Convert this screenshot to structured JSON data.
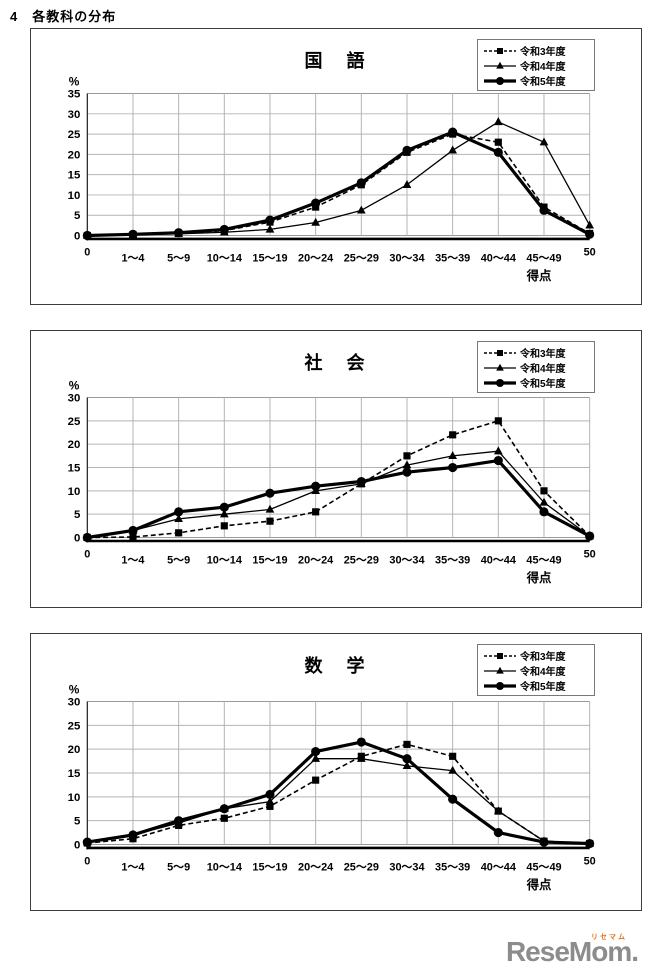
{
  "page": {
    "header": "4　各教科の分布"
  },
  "legend": {
    "items": [
      {
        "label": "令和3年度",
        "marker": "square",
        "line": "dashed",
        "color": "#000000"
      },
      {
        "label": "令和4年度",
        "marker": "triangle",
        "line": "solid-thin",
        "color": "#000000"
      },
      {
        "label": "令和5年度",
        "marker": "circle",
        "line": "solid-thick",
        "color": "#000000"
      }
    ]
  },
  "chart_data": [
    {
      "type": "line",
      "title": "国　語",
      "ylabel": "%",
      "xlabel": "得点",
      "ylim": [
        0,
        35
      ],
      "ytick_step": 5,
      "grid": true,
      "legend_position": "top-right",
      "categories": [
        "0",
        "1〜4",
        "5〜9",
        "10〜14",
        "15〜19",
        "20〜24",
        "25〜29",
        "30〜34",
        "35〜39",
        "40〜44",
        "45〜49",
        "50"
      ],
      "series": [
        {
          "name": "令和3年度",
          "marker": "square",
          "line": "dashed",
          "values": [
            0,
            0.2,
            0.5,
            1.2,
            3.3,
            7,
            12.5,
            20.5,
            25,
            23,
            7,
            0.5
          ]
        },
        {
          "name": "令和4年度",
          "marker": "triangle",
          "line": "solid-thin",
          "values": [
            0,
            0.2,
            0.4,
            0.8,
            1.5,
            3.2,
            6.2,
            12.5,
            21,
            28,
            23,
            2.5
          ]
        },
        {
          "name": "令和5年度",
          "marker": "circle",
          "line": "solid-thick",
          "values": [
            0,
            0.3,
            0.7,
            1.5,
            3.8,
            8,
            13,
            21,
            25.5,
            20.5,
            6.2,
            0.3
          ]
        }
      ]
    },
    {
      "type": "line",
      "title": "社　会",
      "ylabel": "%",
      "xlabel": "得点",
      "ylim": [
        0,
        30
      ],
      "ytick_step": 5,
      "grid": true,
      "legend_position": "top-right",
      "categories": [
        "0",
        "1〜4",
        "5〜9",
        "10〜14",
        "15〜19",
        "20〜24",
        "25〜29",
        "30〜34",
        "35〜39",
        "40〜44",
        "45〜49",
        "50"
      ],
      "series": [
        {
          "name": "令和3年度",
          "marker": "square",
          "line": "dashed",
          "values": [
            0,
            0.1,
            1,
            2.5,
            3.5,
            5.5,
            11.5,
            17.5,
            22,
            25,
            10,
            0.3
          ]
        },
        {
          "name": "令和4年度",
          "marker": "triangle",
          "line": "solid-thin",
          "values": [
            0,
            1.5,
            4,
            5,
            6,
            10,
            11.5,
            15.5,
            17.5,
            18.5,
            7.5,
            0.3
          ]
        },
        {
          "name": "令和5年度",
          "marker": "circle",
          "line": "solid-thick",
          "values": [
            0,
            1.5,
            5.5,
            6.5,
            9.5,
            11,
            12,
            14,
            15,
            16.5,
            5.5,
            0.3
          ]
        }
      ]
    },
    {
      "type": "line",
      "title": "数　学",
      "ylabel": "%",
      "xlabel": "得点",
      "ylim": [
        0,
        30
      ],
      "ytick_step": 5,
      "grid": true,
      "legend_position": "top-right",
      "categories": [
        "0",
        "1〜4",
        "5〜9",
        "10〜14",
        "15〜19",
        "20〜24",
        "25〜29",
        "30〜34",
        "35〜39",
        "40〜44",
        "45〜49",
        "50"
      ],
      "series": [
        {
          "name": "令和3年度",
          "marker": "square",
          "line": "dashed",
          "values": [
            0.3,
            1.2,
            4,
            5.5,
            8,
            13.5,
            18.5,
            21,
            18.5,
            7,
            0.7,
            0.2
          ]
        },
        {
          "name": "令和4年度",
          "marker": "triangle",
          "line": "solid-thin",
          "values": [
            0.5,
            2,
            4.5,
            7.5,
            9,
            18,
            18,
            16.5,
            15.5,
            7,
            0.7,
            0.2
          ]
        },
        {
          "name": "令和5年度",
          "marker": "circle",
          "line": "solid-thick",
          "values": [
            0.5,
            2,
            5,
            7.5,
            10.5,
            19.5,
            21.5,
            18,
            9.5,
            2.5,
            0.5,
            0.2
          ]
        }
      ]
    }
  ],
  "footer": {
    "logo_text": "ReseMom",
    "logo_dot": ".",
    "logo_ruby": "リセマム"
  },
  "colors": {
    "series": "#000000",
    "gridline": "#b3b3b3",
    "axis": "#1a1a1a",
    "box_border": "#3c3c3c",
    "logo_gray": "#8c8c8c",
    "logo_ruby_orange": "#e0731d"
  }
}
